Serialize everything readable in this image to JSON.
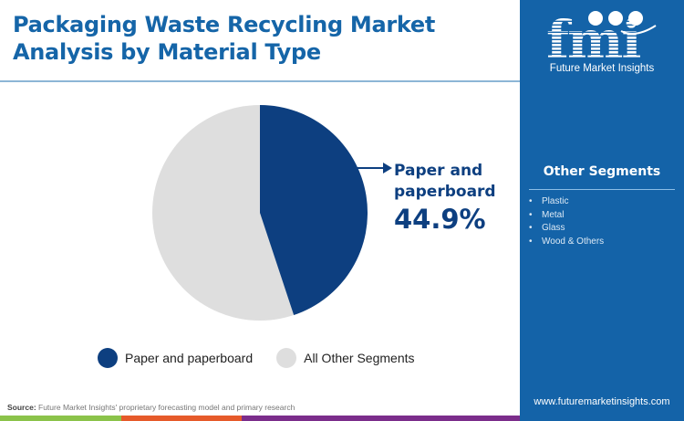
{
  "header": {
    "title": "Packaging Waste Recycling Market Analysis by Material Type"
  },
  "callout": {
    "label": "Paper and paperboard",
    "value": "44.9%"
  },
  "legend": {
    "items": [
      {
        "label": "Paper and paperboard",
        "color": "#0d3f80"
      },
      {
        "label": "All Other Segments",
        "color": "#dedede"
      }
    ]
  },
  "source": {
    "prefix": "Source:",
    "text": " Future Market Insights' proprietary forecasting model and primary research"
  },
  "sidebar": {
    "logo_text": "fmi",
    "logo_subtitle": "Future Market Insights",
    "other_segments_title": "Other Segments",
    "other_segments": [
      "Plastic",
      "Metal",
      "Glass",
      "Wood & Others"
    ],
    "website": "www.futuremarketinsights.com"
  },
  "colors": {
    "title": "#1565a8",
    "primary_slice": "#0d3f80",
    "other_slice": "#dedede",
    "panel": "#1463a8",
    "strip": [
      "#8bc34a",
      "#e65a2a",
      "#7b2d8b"
    ]
  },
  "chart_data": {
    "type": "pie",
    "title": "Packaging Waste Recycling Market Analysis by Material Type",
    "categories": [
      "Paper and paperboard",
      "All Other Segments"
    ],
    "values": [
      44.9,
      55.1
    ],
    "colors": [
      "#0d3f80",
      "#dedede"
    ],
    "start_angle_deg": 0,
    "direction": "clockwise",
    "annotations": [
      {
        "label": "Paper and paperboard",
        "value": "44.9%"
      }
    ],
    "legend_position": "bottom",
    "other_segments_breakdown": [
      "Plastic",
      "Metal",
      "Glass",
      "Wood & Others"
    ]
  }
}
